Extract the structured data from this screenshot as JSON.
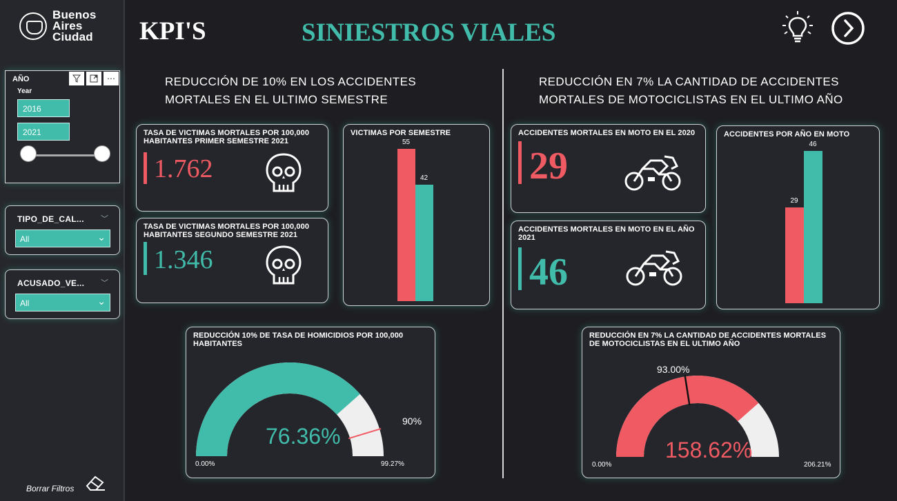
{
  "sidebar": {
    "logo_lines": [
      "Buenos",
      "Aires",
      "Ciudad"
    ],
    "anio": {
      "title": "AÑO",
      "subtitle": "Year",
      "start": "2016",
      "end": "2021"
    },
    "tipo": {
      "title": "TIPO_DE_CAL...",
      "value": "All"
    },
    "acusado": {
      "title": "ACUSADO_VE...",
      "value": "All"
    },
    "borrar_label": "Borrar Filtros"
  },
  "header": {
    "kpi_title": "KPI'S",
    "main_title": "SINIESTROS VIALES"
  },
  "left": {
    "heading_line1": "REDUCCIÓN DE 10% EN LOS ACCIDENTES",
    "heading_line2": "MORTALES EN EL ULTIMO SEMESTRE",
    "card1": {
      "title": "TASA DE VICTIMAS MORTALES POR 100,000 HABITANTES PRIMER SEMESTRE 2021",
      "value": "1.762"
    },
    "card2": {
      "title": "TASA DE VICTIMAS MORTALES POR 100,000 HABITANTES SEGUNDO SEMESTRE 2021",
      "value": "1.346"
    },
    "gauge": {
      "title": "REDUCCIÓN 10% DE TASA DE HOMICIDIOS POR 100,000 HABITANTES",
      "value_label": "76.36%",
      "min_label": "0.00%",
      "max_label": "99.27%",
      "target_label": "90%"
    }
  },
  "right": {
    "heading_line1": "REDUCCIÓN EN 7% LA CANTIDAD DE ACCIDENTES",
    "heading_line2": "MORTALES DE MOTOCICLISTAS EN EL ULTIMO AÑO",
    "card1": {
      "title": "ACCIDENTES MORTALES EN MOTO EN EL 2020",
      "value": "29"
    },
    "card2": {
      "title": "ACCIDENTES MORTALES EN MOTO EN EL AÑO 2021",
      "value": "46"
    },
    "gauge": {
      "title": "REDUCCIÓN EN 7% LA CANTIDAD DE ACCIDENTES MORTALES DE MOTOCICLISTAS EN EL ULTIMO AÑO",
      "value_label": "158.62%",
      "min_label": "0.00%",
      "max_label": "206.21%",
      "target_label": "93.00%"
    }
  },
  "chart_data": [
    {
      "type": "bar",
      "title": "VICTIMAS POR SEMESTRE",
      "series": [
        {
          "values": [
            55
          ]
        },
        {
          "values": [
            42
          ]
        }
      ],
      "values": [
        55,
        42
      ],
      "ylim": [
        0,
        55
      ]
    },
    {
      "type": "bar",
      "title": "ACCIDENTES POR AÑO EN MOTO",
      "values": [
        29,
        46
      ],
      "ylim": [
        0,
        46
      ]
    },
    {
      "type": "gauge",
      "value": 76.36,
      "min": 0,
      "max": 99.27,
      "target": 90
    },
    {
      "type": "gauge",
      "value": 158.62,
      "min": 0,
      "max": 206.21,
      "target": 93.0
    }
  ],
  "colors": {
    "teal": "#41bcab",
    "red": "#ef5a63",
    "light": "#f0efef"
  }
}
